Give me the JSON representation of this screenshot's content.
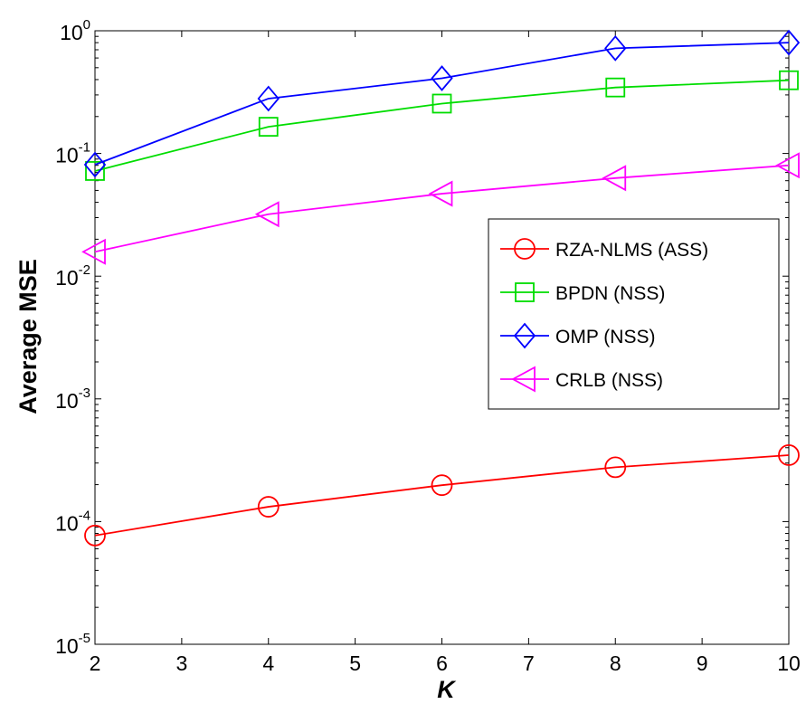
{
  "chart_data": {
    "type": "line",
    "title": "",
    "xlabel": "K",
    "ylabel": "Average MSE",
    "xlim": [
      2,
      10
    ],
    "ylim": [
      1e-05,
      1
    ],
    "yscale": "log",
    "x_ticks": [
      "2",
      "3",
      "4",
      "5",
      "6",
      "7",
      "8",
      "9",
      "10"
    ],
    "y_ticks": [
      {
        "base": "10",
        "exp": "-5"
      },
      {
        "base": "10",
        "exp": "-4"
      },
      {
        "base": "10",
        "exp": "-3"
      },
      {
        "base": "10",
        "exp": "-2"
      },
      {
        "base": "10",
        "exp": "-1"
      },
      {
        "base": "10",
        "exp": "0"
      }
    ],
    "grid": false,
    "legend_position": "middle-right",
    "x": [
      2,
      4,
      6,
      8,
      10
    ],
    "series": [
      {
        "name": "RZA-NLMS (ASS)",
        "color": "#ff0000",
        "marker": "circle",
        "values": [
          7.7e-05,
          0.000132,
          0.000198,
          0.000277,
          0.000348
        ]
      },
      {
        "name": "BPDN (NSS)",
        "color": "#00dd00",
        "marker": "square",
        "values": [
          0.072,
          0.165,
          0.255,
          0.345,
          0.395
        ]
      },
      {
        "name": "OMP (NSS)",
        "color": "#0000ff",
        "marker": "diamond",
        "values": [
          0.081,
          0.28,
          0.41,
          0.72,
          0.8
        ]
      },
      {
        "name": "CRLB (NSS)",
        "color": "#ff00ff",
        "marker": "triangle-left",
        "values": [
          0.0158,
          0.032,
          0.047,
          0.063,
          0.08
        ]
      }
    ]
  }
}
